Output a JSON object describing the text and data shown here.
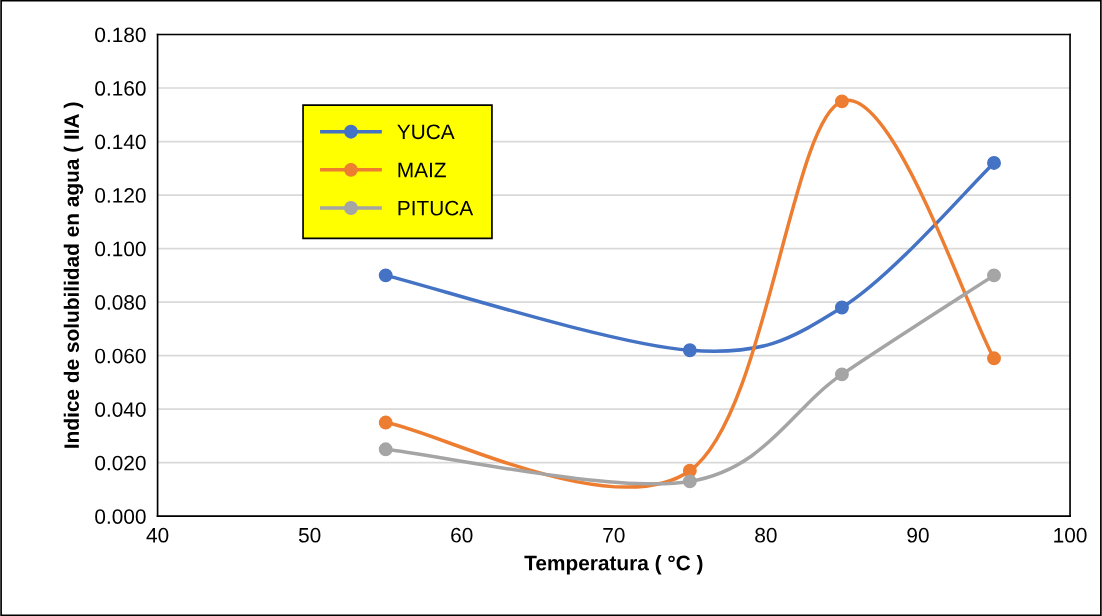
{
  "chart_data": {
    "type": "line",
    "xlabel": "Temperatura ( °C )",
    "ylabel": "Indice de solubilidad en agua ( IIA )",
    "x": [
      55,
      75,
      85,
      95
    ],
    "series": [
      {
        "name": "YUCA",
        "color": "#4472c4",
        "values": [
          0.09,
          0.062,
          0.078,
          0.132
        ]
      },
      {
        "name": "MAIZ",
        "color": "#ed7d31",
        "values": [
          0.035,
          0.017,
          0.155,
          0.059
        ]
      },
      {
        "name": "PITUCA",
        "color": "#a5a5a5",
        "values": [
          0.025,
          0.013,
          0.053,
          0.09
        ]
      }
    ],
    "xlim": [
      40,
      100
    ],
    "xticks": [
      40,
      50,
      60,
      70,
      80,
      90,
      100
    ],
    "ylim": [
      0,
      0.18
    ],
    "yticks": [
      {
        "value": 0,
        "label": "0.000"
      },
      {
        "value": 0.02,
        "label": "0.020"
      },
      {
        "value": 0.04,
        "label": "0.040"
      },
      {
        "value": 0.06,
        "label": "0.060"
      },
      {
        "value": 0.08,
        "label": "0.080"
      },
      {
        "value": 0.1,
        "label": "0.100"
      },
      {
        "value": 0.12,
        "label": "0.120"
      },
      {
        "value": 0.14,
        "label": "0.140"
      },
      {
        "value": 0.16,
        "label": "0.160"
      },
      {
        "value": 0.18,
        "label": "0.180"
      }
    ],
    "grid": "y",
    "legend": "top left",
    "marker": "circle",
    "line_style": "solid"
  }
}
